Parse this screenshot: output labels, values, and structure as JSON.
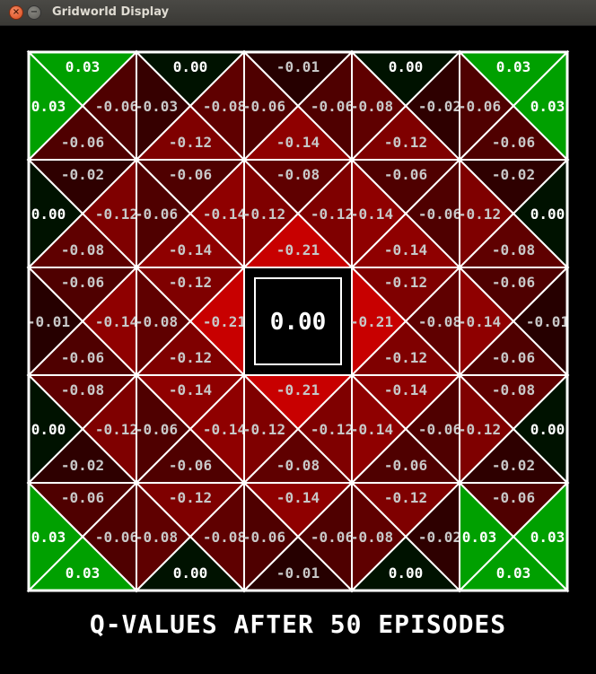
{
  "window": {
    "title": "Gridworld Display",
    "close_glyph": "×",
    "minimize_glyph": "−"
  },
  "caption": "Q-VALUES AFTER 50 EPISODES",
  "wall_value": "0.00",
  "grid": {
    "rows": 5,
    "cols": 5,
    "wall": [
      2,
      2
    ],
    "cells": [
      [
        {
          "top": "0.03",
          "left": "0.03",
          "right": "-0.06",
          "bottom": "-0.06"
        },
        {
          "top": "0.00",
          "left": "-0.03",
          "right": "-0.08",
          "bottom": "-0.12"
        },
        {
          "top": "-0.01",
          "left": "-0.06",
          "right": "-0.06",
          "bottom": "-0.14"
        },
        {
          "top": "0.00",
          "left": "-0.08",
          "right": "-0.02",
          "bottom": "-0.12"
        },
        {
          "top": "0.03",
          "left": "-0.06",
          "right": "0.03",
          "bottom": "-0.06"
        }
      ],
      [
        {
          "top": "-0.02",
          "left": "0.00",
          "right": "-0.12",
          "bottom": "-0.08"
        },
        {
          "top": "-0.06",
          "left": "-0.06",
          "right": "-0.14",
          "bottom": "-0.14"
        },
        {
          "top": "-0.08",
          "left": "-0.12",
          "right": "-0.12",
          "bottom": "-0.21"
        },
        {
          "top": "-0.06",
          "left": "-0.14",
          "right": "-0.06",
          "bottom": "-0.14"
        },
        {
          "top": "-0.02",
          "left": "-0.12",
          "right": "0.00",
          "bottom": "-0.08"
        }
      ],
      [
        {
          "top": "-0.06",
          "left": "-0.01",
          "right": "-0.14",
          "bottom": "-0.06"
        },
        {
          "top": "-0.12",
          "left": "-0.08",
          "right": "-0.21",
          "bottom": "-0.12"
        },
        null,
        {
          "top": "-0.12",
          "left": "-0.21",
          "right": "-0.08",
          "bottom": "-0.12"
        },
        {
          "top": "-0.06",
          "left": "-0.14",
          "right": "-0.01",
          "bottom": "-0.06"
        }
      ],
      [
        {
          "top": "-0.08",
          "left": "0.00",
          "right": "-0.12",
          "bottom": "-0.02"
        },
        {
          "top": "-0.14",
          "left": "-0.06",
          "right": "-0.14",
          "bottom": "-0.06"
        },
        {
          "top": "-0.21",
          "left": "-0.12",
          "right": "-0.12",
          "bottom": "-0.08"
        },
        {
          "top": "-0.14",
          "left": "-0.14",
          "right": "-0.06",
          "bottom": "-0.06"
        },
        {
          "top": "-0.08",
          "left": "-0.12",
          "right": "0.00",
          "bottom": "-0.02"
        }
      ],
      [
        {
          "top": "-0.06",
          "left": "0.03",
          "right": "-0.06",
          "bottom": "0.03"
        },
        {
          "top": "-0.12",
          "left": "-0.08",
          "right": "-0.08",
          "bottom": "0.00"
        },
        {
          "top": "-0.14",
          "left": "-0.06",
          "right": "-0.06",
          "bottom": "-0.01"
        },
        {
          "top": "-0.12",
          "left": "-0.08",
          "right": "-0.02",
          "bottom": "0.00"
        },
        {
          "top": "-0.06",
          "left": "0.03",
          "right": "0.03",
          "bottom": "0.03"
        }
      ]
    ]
  },
  "colors": {
    "positive": "#00a000",
    "negative": "#c80000",
    "grid_lines": "#ffffff",
    "background": "#000000"
  }
}
